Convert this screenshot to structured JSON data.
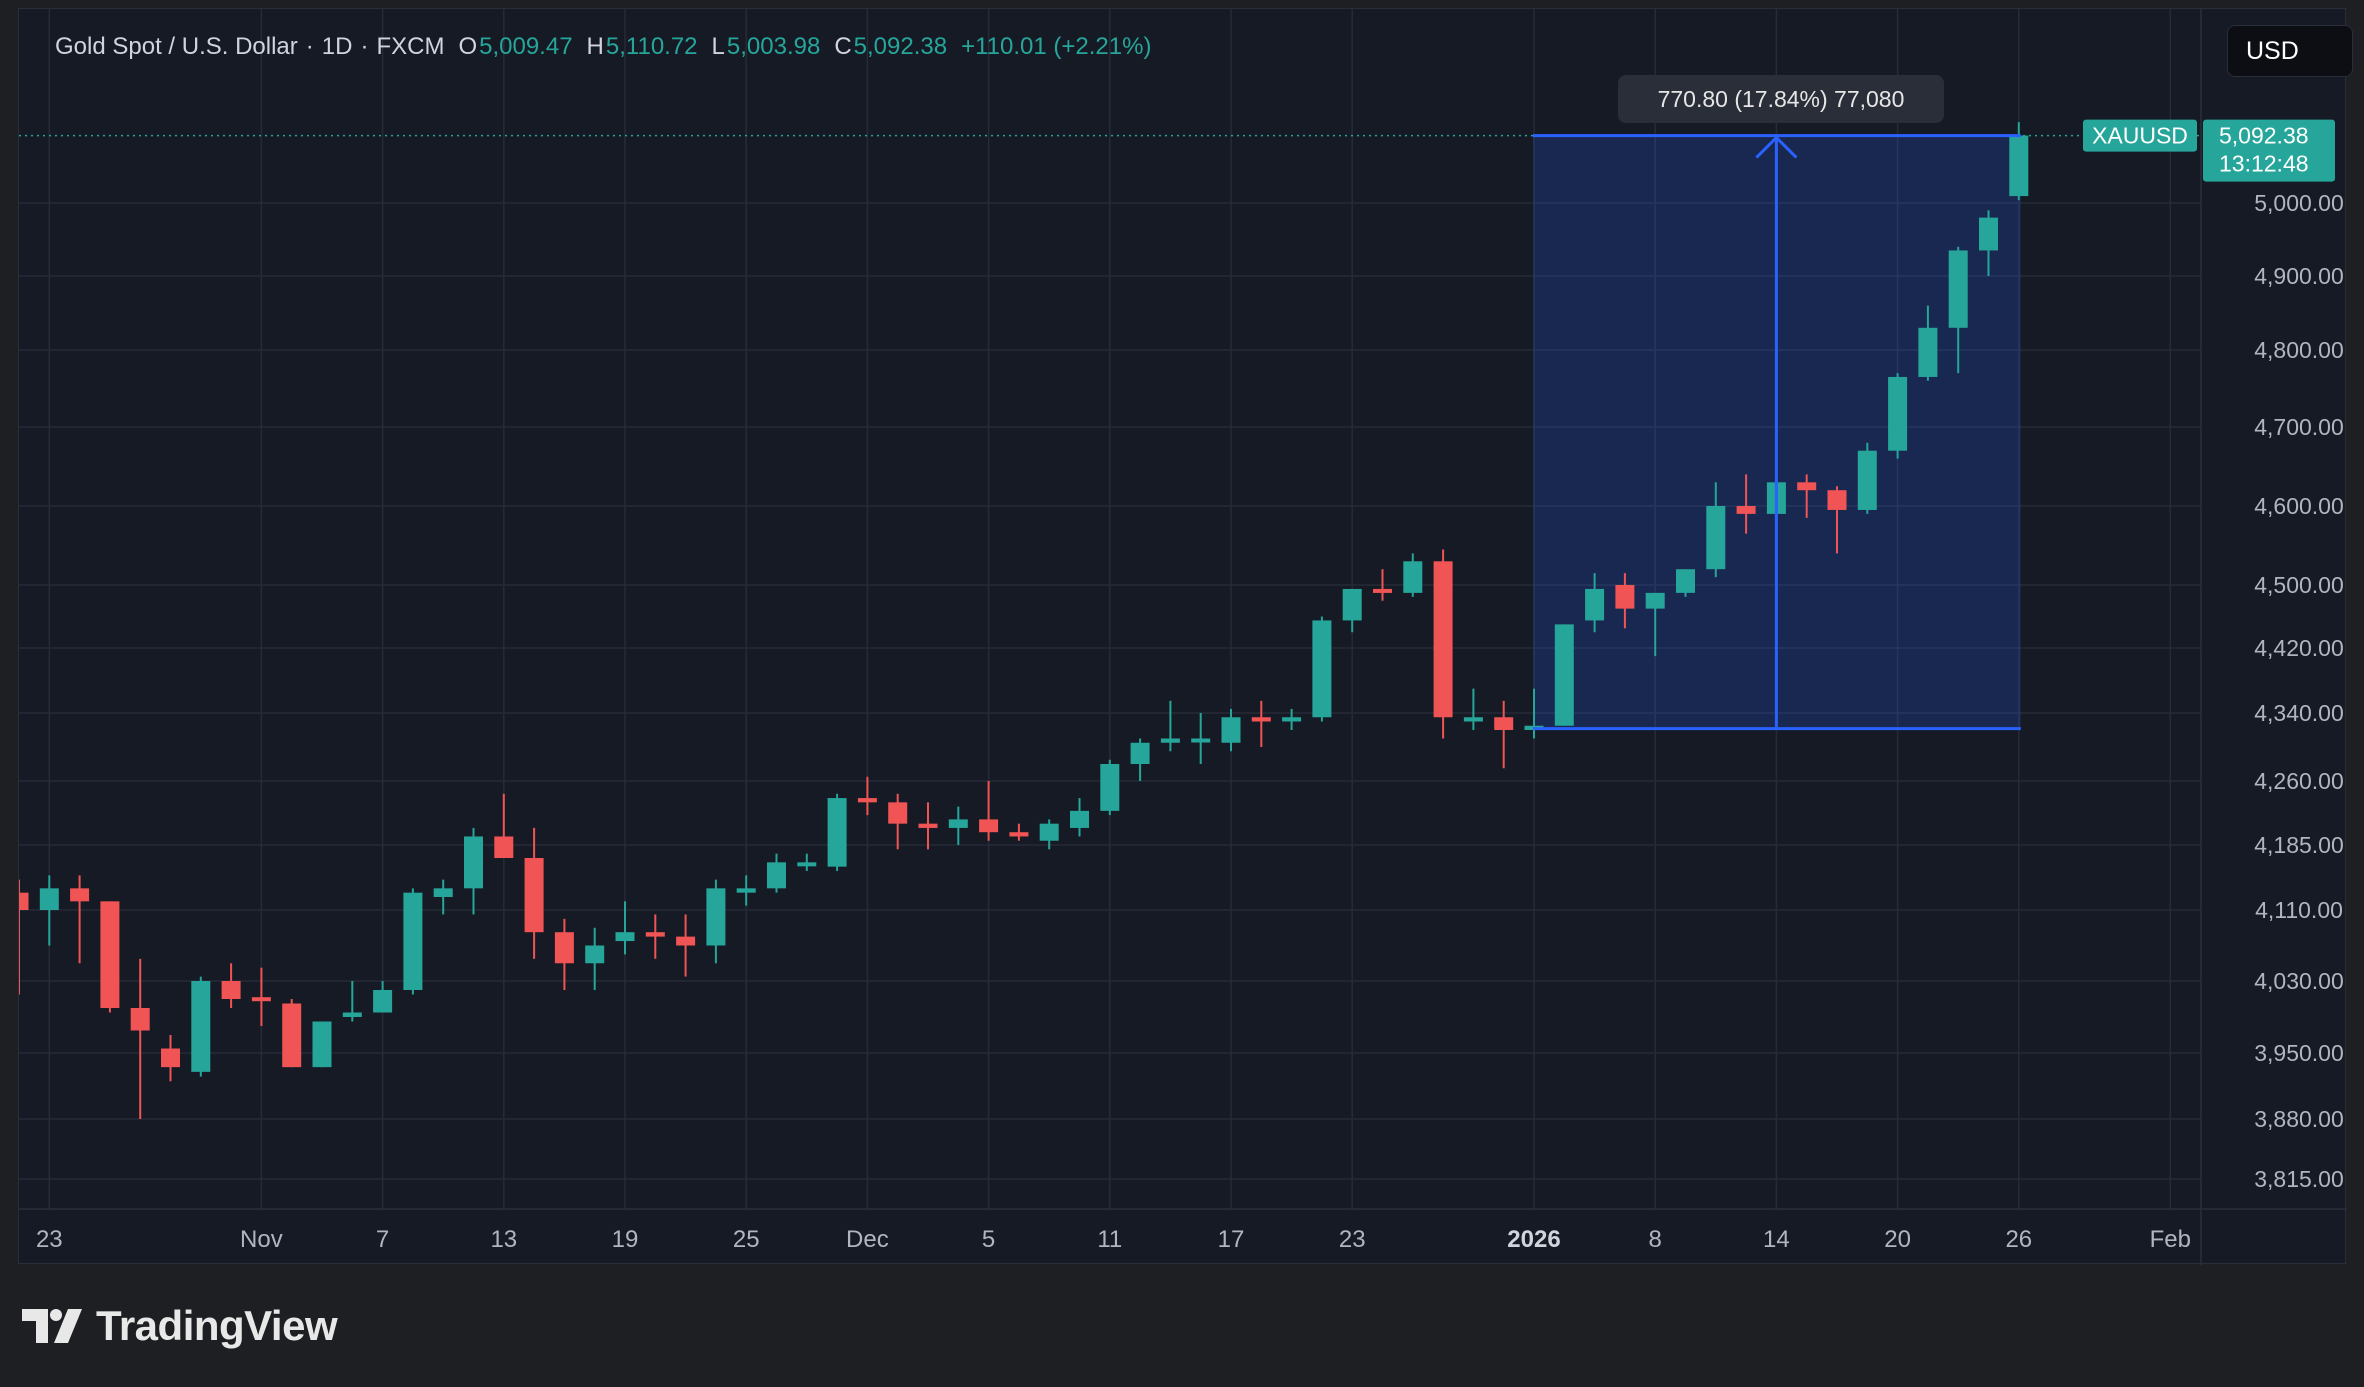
{
  "header": {
    "symbol": "Gold Spot / U.S. Dollar",
    "interval": "1D",
    "exchange": "FXCM",
    "separator": "·",
    "open_label": "O",
    "open": "5,009.47",
    "high_label": "H",
    "high": "5,110.72",
    "low_label": "L",
    "low": "5,003.98",
    "close_label": "C",
    "close": "5,092.38",
    "change": "+110.01 (+2.21%)"
  },
  "currency_button": "USD",
  "measure_label": "770.80 (17.84%) 77,080",
  "last_price": {
    "symbol": "XAUUSD",
    "price": "5,092.38",
    "countdown": "13:12:48"
  },
  "brand": {
    "name": "TradingView"
  },
  "colors": {
    "up": "#26a69a",
    "down": "#f05454",
    "measure": "#2962ff",
    "background": "#161a25",
    "grid": "#262b36",
    "axis_text": "#b2b5be"
  },
  "chart_data": {
    "type": "candlestick",
    "symbol": "XAUUSD",
    "price_axis_ticks": [
      5000,
      4900,
      4800,
      4700,
      4600,
      4500,
      4420,
      4340,
      4260,
      4185,
      4110,
      4030,
      3950,
      3880,
      3815
    ],
    "price_axis_labels": [
      "5,000.00",
      "4,900.00",
      "4,800.00",
      "4,700.00",
      "4,600.00",
      "4,500.00",
      "4,420.00",
      "4,340.00",
      "4,260.00",
      "4,185.00",
      "4,110.00",
      "4,030.00",
      "3,950.00",
      "3,880.00",
      "3,815.00"
    ],
    "time_axis_labels": [
      {
        "label": "23",
        "index": 1
      },
      {
        "label": "Nov",
        "index": 8
      },
      {
        "label": "7",
        "index": 12
      },
      {
        "label": "13",
        "index": 16
      },
      {
        "label": "19",
        "index": 20
      },
      {
        "label": "25",
        "index": 24
      },
      {
        "label": "Dec",
        "index": 28
      },
      {
        "label": "5",
        "index": 32
      },
      {
        "label": "11",
        "index": 36
      },
      {
        "label": "17",
        "index": 40
      },
      {
        "label": "23",
        "index": 44
      },
      {
        "label": "2026",
        "index": 50,
        "bold": true
      },
      {
        "label": "8",
        "index": 54
      },
      {
        "label": "14",
        "index": 58
      },
      {
        "label": "20",
        "index": 62
      },
      {
        "label": "26",
        "index": 66
      },
      {
        "label": "Feb",
        "index": 71
      }
    ],
    "measurement": {
      "from_index": 50,
      "to_index": 66,
      "from_price": 4321.58,
      "to_price": 5092.38,
      "change": 770.8,
      "change_pct": 17.84,
      "ticks": 77080
    },
    "candles": [
      [
        4130,
        4145,
        4015,
        4110
      ],
      [
        4110,
        4150,
        4070,
        4135
      ],
      [
        4135,
        4150,
        4050,
        4120
      ],
      [
        4120,
        4120,
        3995,
        4000
      ],
      [
        4000,
        4055,
        3880,
        3975
      ],
      [
        3955,
        3970,
        3920,
        3935
      ],
      [
        3930,
        4035,
        3925,
        4030
      ],
      [
        4030,
        4050,
        4000,
        4010
      ],
      [
        4012,
        4045,
        3980,
        4010
      ],
      [
        4005,
        4010,
        3935,
        3935
      ],
      [
        3935,
        3985,
        3935,
        3985
      ],
      [
        3990,
        4030,
        3985,
        3995
      ],
      [
        3995,
        4030,
        4000,
        4020
      ],
      [
        4020,
        4135,
        4015,
        4130
      ],
      [
        4125,
        4145,
        4105,
        4135
      ],
      [
        4135,
        4205,
        4105,
        4195
      ],
      [
        4195,
        4245,
        4170,
        4170
      ],
      [
        4170,
        4205,
        4055,
        4085
      ],
      [
        4085,
        4100,
        4020,
        4050
      ],
      [
        4050,
        4090,
        4020,
        4070
      ],
      [
        4075,
        4120,
        4060,
        4085
      ],
      [
        4085,
        4105,
        4055,
        4080
      ],
      [
        4080,
        4105,
        4035,
        4070
      ],
      [
        4070,
        4145,
        4050,
        4135
      ],
      [
        4130,
        4150,
        4115,
        4135
      ],
      [
        4135,
        4175,
        4130,
        4165
      ],
      [
        4165,
        4175,
        4155,
        4165
      ],
      [
        4160,
        4245,
        4155,
        4240
      ],
      [
        4240,
        4265,
        4220,
        4235
      ],
      [
        4235,
        4245,
        4180,
        4210
      ],
      [
        4210,
        4235,
        4180,
        4205
      ],
      [
        4205,
        4230,
        4185,
        4215
      ],
      [
        4215,
        4260,
        4190,
        4200
      ],
      [
        4200,
        4210,
        4190,
        4195
      ],
      [
        4190,
        4215,
        4180,
        4210
      ],
      [
        4205,
        4240,
        4195,
        4225
      ],
      [
        4225,
        4285,
        4220,
        4280
      ],
      [
        4280,
        4310,
        4260,
        4305
      ],
      [
        4305,
        4355,
        4295,
        4310
      ],
      [
        4310,
        4340,
        4280,
        4310
      ],
      [
        4305,
        4345,
        4295,
        4335
      ],
      [
        4335,
        4355,
        4300,
        4330
      ],
      [
        4330,
        4345,
        4320,
        4335
      ],
      [
        4335,
        4460,
        4330,
        4455
      ],
      [
        4455,
        4495,
        4440,
        4495
      ],
      [
        4495,
        4520,
        4480,
        4490
      ],
      [
        4490,
        4540,
        4485,
        4530
      ],
      [
        4530,
        4545,
        4310,
        4335
      ],
      [
        4330,
        4370,
        4320,
        4335
      ],
      [
        4335,
        4355,
        4275,
        4320
      ],
      [
        4320,
        4370,
        4310,
        4325
      ],
      [
        4325,
        4450,
        4325,
        4450
      ],
      [
        4455,
        4515,
        4440,
        4495
      ],
      [
        4500,
        4515,
        4445,
        4470
      ],
      [
        4470,
        4480,
        4410,
        4490
      ],
      [
        4490,
        4520,
        4485,
        4520
      ],
      [
        4520,
        4630,
        4510,
        4600
      ],
      [
        4600,
        4640,
        4565,
        4590
      ],
      [
        4590,
        4640,
        4580,
        4630
      ],
      [
        4630,
        4640,
        4585,
        4620
      ],
      [
        4620,
        4625,
        4540,
        4595
      ],
      [
        4595,
        4680,
        4590,
        4670
      ],
      [
        4670,
        4770,
        4660,
        4765
      ],
      [
        4765,
        4860,
        4760,
        4830
      ],
      [
        4830,
        4940,
        4770,
        4935
      ],
      [
        4935,
        4990,
        4900,
        4980
      ],
      [
        5009.47,
        5110.72,
        5003.98,
        5092.38
      ]
    ]
  }
}
